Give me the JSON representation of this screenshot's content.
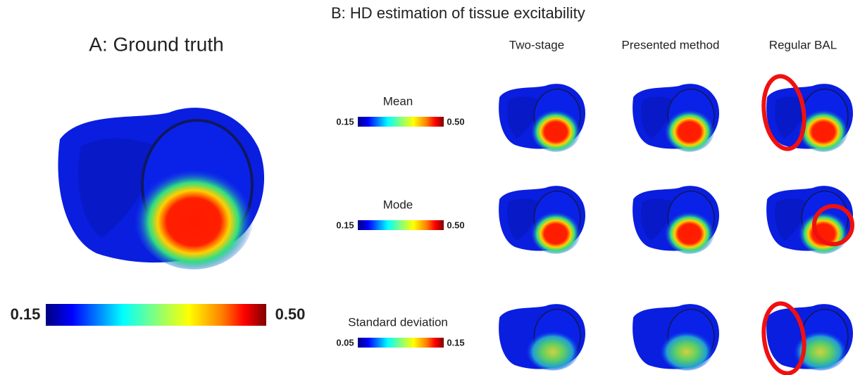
{
  "panel_a": {
    "title": "A: Ground truth",
    "colorbar": {
      "min": "0.15",
      "max": "0.50"
    }
  },
  "panel_b": {
    "title": "B: HD estimation of tissue excitability",
    "columns": [
      "Two-stage",
      "Presented method",
      "Regular BAL"
    ],
    "rows": [
      {
        "label": "Mean",
        "min": "0.15",
        "max": "0.50"
      },
      {
        "label": "Mode",
        "min": "0.15",
        "max": "0.50"
      },
      {
        "label": "Standard deviation",
        "min": "0.05",
        "max": "0.15"
      }
    ]
  }
}
